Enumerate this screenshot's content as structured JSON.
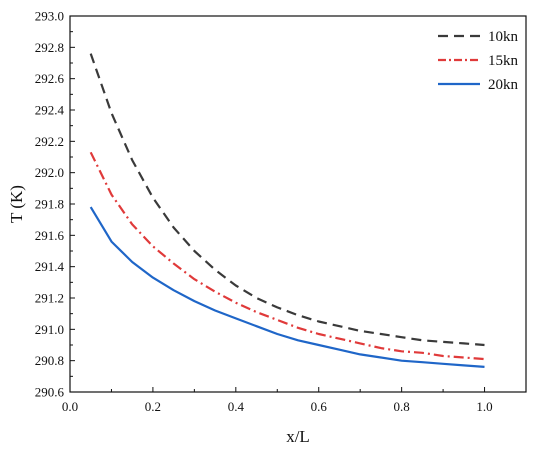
{
  "chart_data": {
    "type": "line",
    "title": "",
    "xlabel": "x/L",
    "ylabel": "T (K)",
    "xlim": [
      0.0,
      1.1
    ],
    "ylim": [
      290.6,
      293.0
    ],
    "xticks": [
      "0.0",
      "0.2",
      "0.4",
      "0.6",
      "0.8",
      "1.0"
    ],
    "yticks": [
      "290.6",
      "290.8",
      "291.0",
      "291.2",
      "291.4",
      "291.6",
      "291.8",
      "292.0",
      "292.2",
      "292.4",
      "292.6",
      "292.8",
      "293.0"
    ],
    "grid": false,
    "legend_position": "top-right",
    "x": [
      0.05,
      0.1,
      0.15,
      0.2,
      0.25,
      0.3,
      0.35,
      0.4,
      0.45,
      0.5,
      0.55,
      0.6,
      0.65,
      0.7,
      0.75,
      0.8,
      0.85,
      0.9,
      0.95,
      1.0
    ],
    "series": [
      {
        "name": "10kn",
        "color": "#3a3a3a",
        "style": "dash",
        "values": [
          292.76,
          292.38,
          292.08,
          291.84,
          291.65,
          291.5,
          291.38,
          291.28,
          291.2,
          291.14,
          291.09,
          291.05,
          291.02,
          290.99,
          290.97,
          290.95,
          290.93,
          290.92,
          290.91,
          290.9
        ]
      },
      {
        "name": "15kn",
        "color": "#e03a3a",
        "style": "dashdot",
        "values": [
          292.13,
          291.86,
          291.67,
          291.53,
          291.42,
          291.32,
          291.24,
          291.17,
          291.11,
          291.06,
          291.01,
          290.97,
          290.94,
          290.91,
          290.88,
          290.86,
          290.85,
          290.83,
          290.82,
          290.81
        ]
      },
      {
        "name": "20kn",
        "color": "#1f66c8",
        "style": "solid",
        "values": [
          291.78,
          291.56,
          291.43,
          291.33,
          291.25,
          291.18,
          291.12,
          291.07,
          291.02,
          290.97,
          290.93,
          290.9,
          290.87,
          290.84,
          290.82,
          290.8,
          290.79,
          290.78,
          290.77,
          290.76
        ]
      }
    ]
  }
}
